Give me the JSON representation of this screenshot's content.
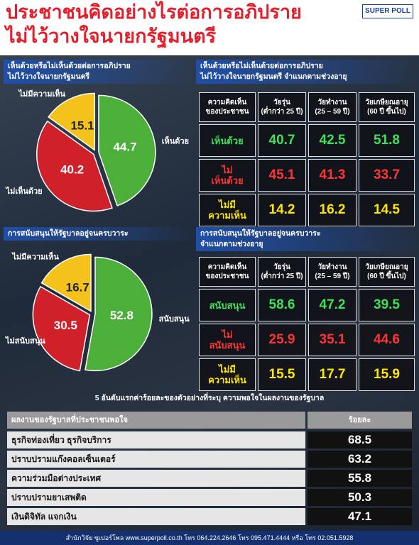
{
  "title": [
    "ประชาชนคิดอย่างไรต่อการอภิปราย",
    "ไม่ไว้วางใจนายกรัฐมนตรี"
  ],
  "brand": "SUPER POLL",
  "chart_data": [
    {
      "type": "pie",
      "title": [
        "เห็นด้วยหรือไม่เห็นด้วยต่อการอภิปราย",
        "ไม่ไว้วางใจนายกรัฐมนตรี"
      ],
      "categories": [
        "เห็นด้วย",
        "ไม่เห็นด้วย",
        "ไม่มีความเห็น"
      ],
      "values": [
        44.7,
        40.2,
        15.1
      ],
      "colors": [
        "#4caf3a",
        "#d0202a",
        "#f5c21b"
      ]
    },
    {
      "type": "pie",
      "title": [
        "การสนับสนุนให้รัฐบาลอยู่จนครบวาระ"
      ],
      "categories": [
        "สนับสนุน",
        "ไม่สนับสนุน",
        "ไม่มีความเห็น"
      ],
      "values": [
        52.8,
        30.5,
        16.7
      ],
      "colors": [
        "#4caf3a",
        "#d0202a",
        "#f5c21b"
      ]
    }
  ],
  "tables": [
    {
      "title": [
        "เห็นด้วยหรือไม่เห็นด้วยต่อการอภิปราย",
        "ไม่ไว้วางใจนายกรัฐมนตรี จำแนกตามช่วงอายุ"
      ],
      "header": [
        [
          "ความคิดเห็น",
          "ของประชาชน"
        ],
        [
          "วัยรุ่น",
          "(ต่ำกว่า 25 ปี)"
        ],
        [
          "วัยทำงาน",
          "(25 – 59 ปี)"
        ],
        [
          "วัยเกษียณอายุ",
          "(60 ปี ขึ้นไป)"
        ]
      ],
      "rows": [
        {
          "label": [
            "เห็นด้วย"
          ],
          "values": [
            40.7,
            42.5,
            51.8
          ]
        },
        {
          "label": [
            "ไม่",
            "เห็นด้วย"
          ],
          "values": [
            45.1,
            41.3,
            33.7
          ]
        },
        {
          "label": [
            "ไม่มี",
            "ความเห็น"
          ],
          "values": [
            14.2,
            16.2,
            14.5
          ]
        }
      ]
    },
    {
      "title": [
        "การสนับสนุนให้รัฐบาลอยู่จนครบวาระ",
        "จำแนกตามช่วงอายุ"
      ],
      "header": [
        [
          "ความคิดเห็น",
          "ของประชาชน"
        ],
        [
          "วัยรุ่น",
          "(ต่ำกว่า 25 ปี)"
        ],
        [
          "วัยทำงาน",
          "(25 – 59 ปี)"
        ],
        [
          "วัยเกษียณอายุ",
          "(60 ปี ขึ้นไป)"
        ]
      ],
      "rows": [
        {
          "label": [
            "สนับสนุน"
          ],
          "values": [
            58.6,
            47.2,
            39.5
          ]
        },
        {
          "label": [
            "ไม่",
            "สนับสนุน"
          ],
          "values": [
            25.9,
            35.1,
            44.6
          ]
        },
        {
          "label": [
            "ไม่มี",
            "ความเห็น"
          ],
          "values": [
            15.5,
            17.7,
            15.9
          ]
        }
      ]
    }
  ],
  "ranking": {
    "title": "5 อันดับแรกค่าร้อยละของตัวอย่างที่ระบุ ความพอใจในผลงานของรัฐบาล",
    "header": [
      "ผลงานของรัฐบาลที่ประชาชนพอใจ",
      "ร้อยละ"
    ],
    "rows": [
      {
        "label": "ธุรกิจท่องเที่ยว ธุรกิจบริการ",
        "value": 68.5
      },
      {
        "label": "ปราบปรามแก๊งคอลเซ็นเตอร์",
        "value": 63.2
      },
      {
        "label": "ความร่วมมือต่างประเทศ",
        "value": 55.8
      },
      {
        "label": "ปราบปรามยาเสพติด",
        "value": 50.3
      },
      {
        "label": "เงินดิจิทัล แจกเงิน",
        "value": 47.1
      }
    ]
  },
  "footer": "สำนักวิจัย ซูเปอร์โพล www.superpoll.co.th โทร 064.224.2646 โทร 095.471.4444 หรือ โทร 02.051.5928"
}
